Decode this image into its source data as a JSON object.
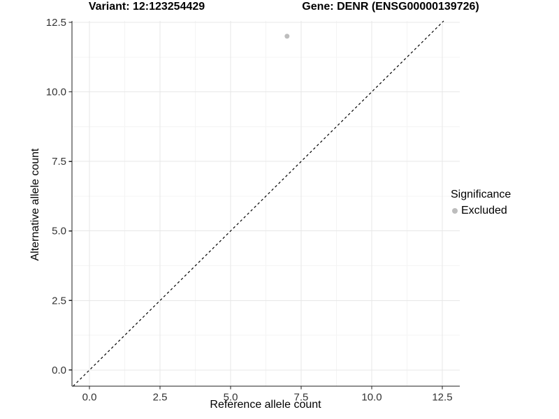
{
  "chart_data": {
    "type": "scatter",
    "title_left": "Variant: 12:123254429",
    "title_right": "Gene: DENR (ENSG00000139726)",
    "xlabel": "Reference allele count",
    "ylabel": "Alternative allele count",
    "x_ticks": [
      0.0,
      2.5,
      5.0,
      7.5,
      10.0,
      12.5
    ],
    "y_ticks": [
      0.0,
      2.5,
      5.0,
      7.5,
      10.0,
      12.5
    ],
    "x_minor": [
      1.25,
      3.75,
      6.25,
      8.75,
      11.25
    ],
    "y_minor": [
      1.25,
      3.75,
      6.25,
      8.75,
      11.25
    ],
    "xlim": [
      -0.62,
      13.12
    ],
    "ylim": [
      -0.58,
      12.55
    ],
    "tick_decimals": 1,
    "grid": true,
    "points": [
      {
        "x": 7,
        "y": 12,
        "series": "Excluded",
        "color": "#bdbdbd"
      }
    ],
    "abline": {
      "slope": 1,
      "intercept": 0,
      "style": "dashed",
      "color": "#000000"
    },
    "legend": {
      "title": "Significance",
      "position": "right",
      "entries": [
        {
          "label": "Excluded",
          "color": "#bdbdbd"
        }
      ]
    }
  },
  "colors": {
    "background": "#ffffff",
    "grid_major": "#e7e7e7",
    "grid_minor": "#f4f4f4",
    "axis": "#1f1f1f",
    "tick_label": "#333333",
    "point": "#bdbdbd"
  }
}
